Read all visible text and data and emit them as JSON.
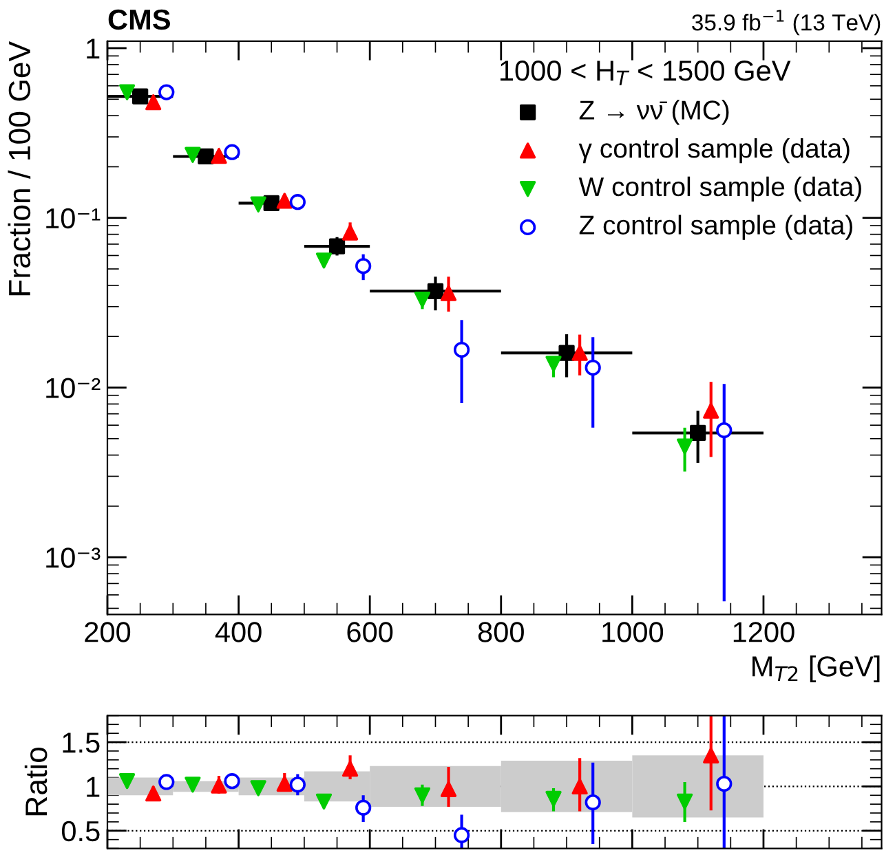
{
  "chart_data": [
    {
      "type": "scatter",
      "title": "CMS",
      "subtitle": "35.9 fb$^{−1}$ (13 TeV)",
      "ylabel": "Fraction / 100 GeV",
      "xlabel": "M$_{T2}$ [GeV]",
      "legend_title": "1000 < H$_{T}$ < 1500 GeV",
      "log": "y",
      "legend": "top right",
      "xlim": [
        200,
        1380
      ],
      "xticks": [
        200,
        400,
        600,
        800,
        1000,
        1200
      ],
      "ylim": [
        0.00046,
        1.1
      ],
      "yticks": [
        {
          "value": 0.001,
          "label": "10⁻³"
        },
        {
          "value": 0.01,
          "label": "10⁻²"
        },
        {
          "value": 0.1,
          "label": "10⁻¹"
        },
        1
      ],
      "series": [
        {
          "name": "Z → νν̄ (MC)",
          "color": "#000000",
          "marker": "square",
          "x": [
            250,
            350,
            450,
            550,
            700,
            900,
            1100
          ],
          "values": [
            0.52,
            0.23,
            0.122,
            0.068,
            0.037,
            0.016,
            0.0054
          ],
          "xerrors": [
            50,
            50,
            50,
            50,
            100,
            100,
            100
          ],
          "errors": [
            [
              0.49,
              0.55
            ],
            null,
            [
              0.113,
              0.131
            ],
            [
              0.06,
              0.077
            ],
            [
              0.0285,
              0.045
            ],
            [
              0.0115,
              0.0206
            ],
            [
              0.0036,
              0.0073
            ]
          ]
        },
        {
          "name": "γ control sample (data)",
          "color": "#ff0000",
          "marker": "triangle",
          "x": [
            270,
            370,
            470,
            570,
            720,
            920,
            1120
          ],
          "values": [
            0.48,
            0.232,
            0.126,
            0.082,
            0.036,
            0.016,
            0.0073
          ],
          "errors": [
            null,
            null,
            [
              0.118,
              0.138
            ],
            [
              0.074,
              0.094
            ],
            [
              0.028,
              0.045
            ],
            [
              0.0118,
              0.0205
            ],
            [
              0.0039,
              0.0108
            ]
          ]
        },
        {
          "name": "W control sample (data)",
          "color": "#00cc00",
          "marker": "triangle_down",
          "x": [
            230,
            330,
            430,
            530,
            680,
            880,
            1080
          ],
          "values": [
            0.55,
            0.235,
            0.12,
            0.056,
            0.033,
            0.0138,
            0.0045
          ],
          "errors": [
            null,
            null,
            null,
            null,
            [
              0.029,
              0.036
            ],
            [
              0.0115,
              0.0145
            ],
            [
              0.0032,
              0.0058
            ]
          ]
        },
        {
          "name": "Z control sample (data)",
          "color": "#0000ff",
          "marker": "circle",
          "x": [
            290,
            390,
            490,
            590,
            740,
            940,
            1140
          ],
          "values": [
            0.55,
            0.244,
            0.124,
            0.052,
            0.0167,
            0.0131,
            0.0056
          ],
          "errors": [
            null,
            null,
            [
              0.113,
              0.137
            ],
            [
              0.043,
              0.061
            ],
            [
              0.0081,
              0.025
            ],
            [
              0.0058,
              0.0198
            ],
            [
              0.00055,
              0.0105
            ]
          ]
        }
      ]
    },
    {
      "type": "scatter",
      "ylabel": "Ratio",
      "tick_labels": "y",
      "grid": "y",
      "xlim": [
        200,
        1380
      ],
      "xticks": [
        200,
        400,
        600,
        800,
        1000,
        1200
      ],
      "ylim": [
        0.3,
        1.8
      ],
      "yticks": [
        0.5,
        1,
        1.5
      ],
      "series": [
        {
          "type": "histogram",
          "color": "#cccccc",
          "bins": [
            200,
            300,
            400,
            500,
            600,
            800,
            1000,
            1200
          ],
          "base": [
            0.9,
            0.94,
            0.9,
            0.83,
            0.77,
            0.71,
            0.65
          ],
          "values": [
            0.2,
            0.12,
            0.2,
            0.34,
            0.46,
            0.58,
            0.7
          ]
        },
        {
          "color": "#ff0000",
          "marker": "triangle",
          "x": [
            270,
            370,
            470,
            570,
            720,
            920,
            1120
          ],
          "values": [
            0.92,
            1.01,
            1.03,
            1.2,
            0.97,
            1.0,
            1.35
          ],
          "errors": [
            [
              0.85,
              1.0
            ],
            [
              0.92,
              1.12
            ],
            [
              0.95,
              1.15
            ],
            [
              1.08,
              1.35
            ],
            [
              0.77,
              1.22
            ],
            [
              0.72,
              1.32
            ],
            [
              0.73,
              1.8
            ]
          ]
        },
        {
          "color": "#00cc00",
          "marker": "triangle_down",
          "x": [
            230,
            330,
            430,
            530,
            680,
            880,
            1080
          ],
          "values": [
            1.06,
            1.02,
            0.98,
            0.83,
            0.9,
            0.86,
            0.83
          ],
          "errors": [
            null,
            null,
            null,
            null,
            [
              0.78,
              1.02
            ],
            [
              0.72,
              0.98
            ],
            [
              0.6,
              1.05
            ]
          ]
        },
        {
          "color": "#0000ff",
          "marker": "circle",
          "x": [
            290,
            390,
            490,
            590,
            740,
            940,
            1140
          ],
          "values": [
            1.05,
            1.06,
            1.02,
            0.76,
            0.45,
            0.82,
            1.03
          ],
          "errors": [
            [
              1.0,
              1.1
            ],
            [
              1.0,
              1.13
            ],
            [
              0.9,
              1.14
            ],
            [
              0.6,
              0.9
            ],
            [
              0.3,
              0.68
            ],
            [
              0.35,
              1.27
            ],
            [
              0.3,
              1.8
            ]
          ]
        }
      ]
    }
  ]
}
